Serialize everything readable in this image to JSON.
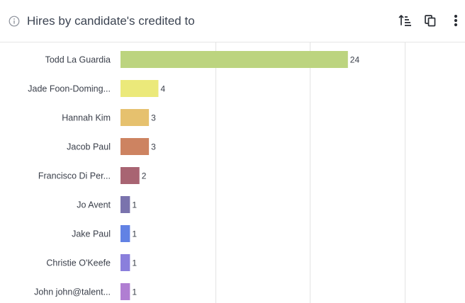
{
  "header": {
    "title": "Hires by candidate's credited to",
    "info_icon": "info-icon",
    "sort_icon": "sort-ascending-icon",
    "copy_icon": "copy-icon",
    "more_icon": "more-vertical-icon"
  },
  "chart_data": {
    "type": "bar",
    "orientation": "horizontal",
    "categories": [
      "Todd La Guardia",
      "Jade Foon-Doming...",
      "Hannah Kim",
      "Jacob Paul",
      "Francisco Di Per...",
      "Jo Avent",
      "Jake Paul",
      "Christie O'Keefe",
      "John john@talent..."
    ],
    "values": [
      24,
      4,
      3,
      3,
      2,
      1,
      1,
      1,
      1
    ],
    "colors": [
      "#bcd47f",
      "#ebe97a",
      "#e6c16e",
      "#cd8361",
      "#a86472",
      "#7a73ad",
      "#6282e4",
      "#8a7fdc",
      "#b07ed2"
    ],
    "xlim": [
      0,
      30
    ],
    "gridlines": [
      10,
      20,
      30
    ],
    "grid": true,
    "title": "",
    "xlabel": "",
    "ylabel": "",
    "legend": "none"
  }
}
